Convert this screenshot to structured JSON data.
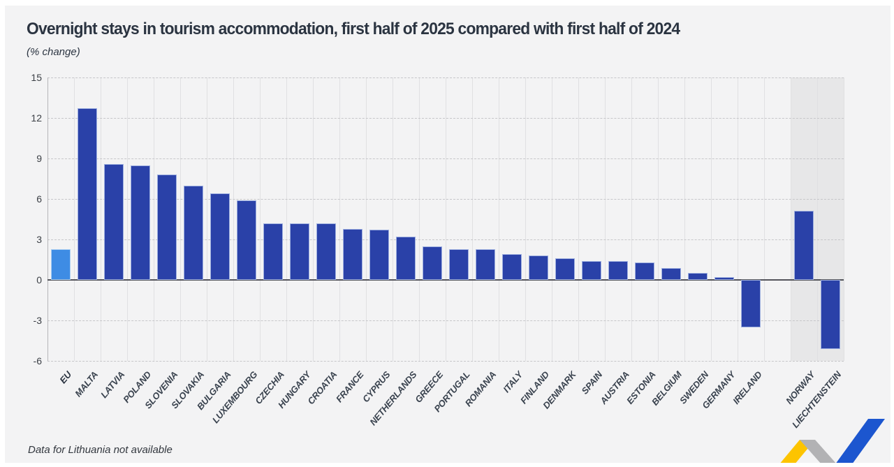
{
  "header": {
    "title": "Overnight stays in tourism accommodation, first half of 2025 compared with first half of 2024",
    "subtitle": "(% change)"
  },
  "footnote": "Data for Lithuania not available",
  "colors": {
    "bar_default": "#2a41a8",
    "bar_eu": "#3e8ce4",
    "highlight_band": "#e7e7e8",
    "panel_background": "#f3f3f4",
    "logo_yellow": "#fdc400",
    "logo_gray": "#b2b2b4",
    "logo_blue": "#1c56cf"
  },
  "chart_data": {
    "type": "bar",
    "title": "Overnight stays in tourism accommodation, first half of 2025 compared with first half of 2024",
    "subtitle": "(% change)",
    "ylabel": "% change",
    "ylim": [
      -6,
      15
    ],
    "yticks": [
      15,
      12,
      9,
      6,
      3,
      0,
      -3,
      -6
    ],
    "grid": "horizontal-dashed",
    "legend": "none",
    "shaded_columns": [
      "NORWAY",
      "LIECHTENSTEIN"
    ],
    "bars": [
      {
        "label": "EU",
        "value": 2.3,
        "style": "eu"
      },
      {
        "label": "MALTA",
        "value": 12.7,
        "style": "dark"
      },
      {
        "label": "LATVIA",
        "value": 8.6,
        "style": "dark"
      },
      {
        "label": "POLAND",
        "value": 8.5,
        "style": "dark"
      },
      {
        "label": "SLOVENIA",
        "value": 7.8,
        "style": "dark"
      },
      {
        "label": "SLOVAKIA",
        "value": 7.0,
        "style": "dark"
      },
      {
        "label": "BULGARIA",
        "value": 6.4,
        "style": "dark"
      },
      {
        "label": "LUXEMBOURG",
        "value": 5.9,
        "style": "dark"
      },
      {
        "label": "CZECHIA",
        "value": 4.2,
        "style": "dark"
      },
      {
        "label": "HUNGARY",
        "value": 4.2,
        "style": "dark"
      },
      {
        "label": "CROATIA",
        "value": 4.2,
        "style": "dark"
      },
      {
        "label": "FRANCE",
        "value": 3.8,
        "style": "dark"
      },
      {
        "label": "CYPRUS",
        "value": 3.7,
        "style": "dark"
      },
      {
        "label": "NETHERLANDS",
        "value": 3.2,
        "style": "dark"
      },
      {
        "label": "GREECE",
        "value": 2.5,
        "style": "dark"
      },
      {
        "label": "PORTUGAL",
        "value": 2.3,
        "style": "dark"
      },
      {
        "label": "ROMANIA",
        "value": 2.3,
        "style": "dark"
      },
      {
        "label": "ITALY",
        "value": 1.9,
        "style": "dark"
      },
      {
        "label": "FINLAND",
        "value": 1.8,
        "style": "dark"
      },
      {
        "label": "DENMARK",
        "value": 1.6,
        "style": "dark"
      },
      {
        "label": "SPAIN",
        "value": 1.4,
        "style": "dark"
      },
      {
        "label": "AUSTRIA",
        "value": 1.4,
        "style": "dark"
      },
      {
        "label": "ESTONIA",
        "value": 1.3,
        "style": "dark"
      },
      {
        "label": "BELGIUM",
        "value": 0.9,
        "style": "dark"
      },
      {
        "label": "SWEDEN",
        "value": 0.5,
        "style": "dark"
      },
      {
        "label": "GERMANY",
        "value": 0.2,
        "style": "dark"
      },
      {
        "label": "IRELAND",
        "value": -3.5,
        "style": "dark"
      },
      {
        "label": "",
        "value": null,
        "style": "gap"
      },
      {
        "label": "NORWAY",
        "value": 5.1,
        "style": "dark"
      },
      {
        "label": "LIECHTENSTEIN",
        "value": -5.1,
        "style": "dark"
      }
    ]
  }
}
